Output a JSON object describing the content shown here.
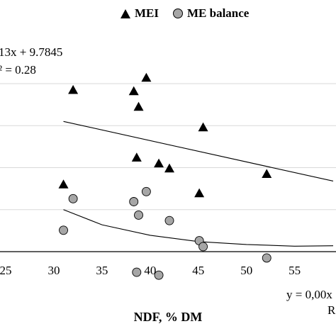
{
  "chart_data": {
    "type": "scatter",
    "xlabel": "NDF, % DM",
    "xlim": [
      25,
      59
    ],
    "ylim": [
      -1.0,
      6.0
    ],
    "xticks": [
      25,
      30,
      35,
      40,
      45,
      50,
      55
    ],
    "ytick_gridlines": [
      1,
      2,
      3,
      4
    ],
    "grid": "horizontal",
    "legend_position": "top",
    "series": [
      {
        "name": "MEI",
        "marker": "triangle",
        "color": "#000000",
        "points": [
          {
            "x": 31.0,
            "y": 1.6
          },
          {
            "x": 32.0,
            "y": 3.85
          },
          {
            "x": 38.3,
            "y": 3.82
          },
          {
            "x": 38.8,
            "y": 3.45
          },
          {
            "x": 39.6,
            "y": 4.14
          },
          {
            "x": 38.6,
            "y": 2.24
          },
          {
            "x": 40.9,
            "y": 2.1
          },
          {
            "x": 42.0,
            "y": 1.98
          },
          {
            "x": 45.1,
            "y": 1.39
          },
          {
            "x": 45.5,
            "y": 2.96
          },
          {
            "x": 52.1,
            "y": 1.85
          }
        ]
      },
      {
        "name": "ME balance",
        "marker": "circle",
        "color": "#a6a6a6",
        "points": [
          {
            "x": 31.0,
            "y": 0.51
          },
          {
            "x": 32.0,
            "y": 1.26
          },
          {
            "x": 38.3,
            "y": 1.19
          },
          {
            "x": 38.8,
            "y": 0.87
          },
          {
            "x": 39.6,
            "y": 1.43
          },
          {
            "x": 38.6,
            "y": -0.49
          },
          {
            "x": 40.9,
            "y": -0.56
          },
          {
            "x": 42.0,
            "y": 0.74
          },
          {
            "x": 45.1,
            "y": 0.26
          },
          {
            "x": 45.5,
            "y": 0.12
          },
          {
            "x": 52.1,
            "y": -0.15
          }
        ]
      }
    ],
    "trendlines": [
      {
        "series": "MEI",
        "type": "linear",
        "x_start": 31.0,
        "x_end": 59.0,
        "y_start": 3.1,
        "y_end": 1.68
      },
      {
        "series": "ME balance",
        "type": "polynomial",
        "points": [
          [
            31,
            1.0
          ],
          [
            35,
            0.64
          ],
          [
            40,
            0.39
          ],
          [
            45,
            0.24
          ],
          [
            50,
            0.17
          ],
          [
            55,
            0.13
          ],
          [
            59,
            0.14
          ]
        ]
      }
    ],
    "annotations": {
      "mei_equation": "13x + 9.7845",
      "mei_r2": "² = 0.28",
      "balance_equation": "y = 0,00x",
      "balance_r2": "R"
    }
  }
}
